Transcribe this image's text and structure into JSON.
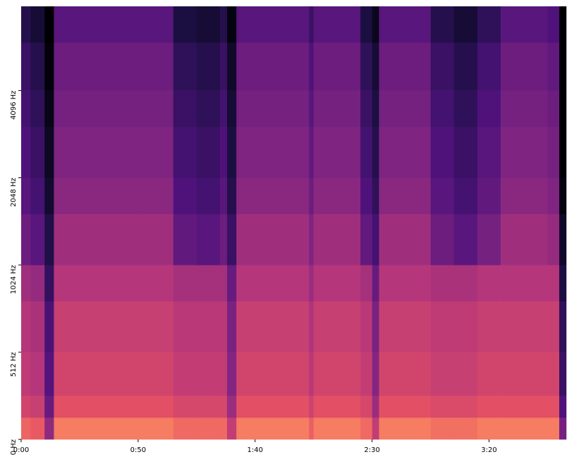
{
  "chart_data": {
    "type": "spectrogram",
    "x": [
      0,
      4,
      10,
      14,
      25,
      50,
      65,
      75,
      85,
      88,
      92,
      110,
      123,
      125,
      145,
      150,
      153,
      175,
      185,
      195,
      205,
      225,
      230,
      233
    ],
    "y": [
      0,
      128,
      256,
      512,
      768,
      1024,
      1536,
      2048,
      3072,
      4096,
      6000,
      8000
    ],
    "values": [
      [
        -26,
        -28,
        -47,
        -22,
        -22,
        -22,
        -25,
        -25,
        -25,
        -37,
        -22,
        -22,
        -27,
        -22,
        -25,
        -37,
        -22,
        -24,
        -24,
        -22,
        -22,
        -22,
        -52
      ],
      [
        -34,
        -36,
        -55,
        -30,
        -30,
        -30,
        -33,
        -33,
        -33,
        -45,
        -30,
        -30,
        -35,
        -30,
        -33,
        -45,
        -30,
        -32,
        -32,
        -30,
        -30,
        -30,
        -60
      ],
      [
        -38,
        -40,
        -59,
        -34,
        -34,
        -34,
        -37,
        -37,
        -37,
        -49,
        -34,
        -34,
        -39,
        -34,
        -37,
        -49,
        -34,
        -36,
        -36,
        -34,
        -34,
        -34,
        -64
      ],
      [
        -40,
        -42,
        -61,
        -36,
        -36,
        -36,
        -39,
        -39,
        -39,
        -51,
        -36,
        -36,
        -41,
        -36,
        -39,
        -51,
        -36,
        -38,
        -38,
        -36,
        -36,
        -36,
        -66
      ],
      [
        -44,
        -46,
        -65,
        -40,
        -40,
        -40,
        -43,
        -43,
        -43,
        -55,
        -40,
        -40,
        -45,
        -40,
        -43,
        -55,
        -40,
        -42,
        -42,
        -40,
        -40,
        -40,
        -70
      ],
      [
        -54,
        -58,
        -69,
        -44,
        -44,
        -44,
        -56,
        -58,
        -54,
        -64,
        -44,
        -44,
        -50,
        -44,
        -56,
        -62,
        -44,
        -54,
        -58,
        -52,
        -44,
        -46,
        -74
      ],
      [
        -58,
        -62,
        -73,
        -48,
        -48,
        -48,
        -60,
        -62,
        -58,
        -68,
        -48,
        -48,
        -54,
        -48,
        -60,
        -66,
        -48,
        -58,
        -62,
        -56,
        -48,
        -50,
        -78
      ],
      [
        -60,
        -64,
        -75,
        -50,
        -50,
        -50,
        -62,
        -64,
        -60,
        -70,
        -50,
        -50,
        -56,
        -50,
        -62,
        -68,
        -50,
        -60,
        -64,
        -58,
        -50,
        -52,
        -80
      ],
      [
        -62,
        -66,
        -77,
        -52,
        -52,
        -52,
        -64,
        -66,
        -62,
        -72,
        -52,
        -52,
        -58,
        -52,
        -64,
        -70,
        -52,
        -62,
        -66,
        -60,
        -52,
        -54,
        -80
      ],
      [
        -64,
        -68,
        -79,
        -54,
        -54,
        -54,
        -66,
        -68,
        -64,
        -74,
        -54,
        -54,
        -60,
        -54,
        -66,
        -72,
        -54,
        -64,
        -68,
        -62,
        -54,
        -56,
        -80
      ],
      [
        -68,
        -72,
        -80,
        -58,
        -58,
        -58,
        -70,
        -72,
        -68,
        -78,
        -58,
        -58,
        -64,
        -58,
        -70,
        -76,
        -58,
        -68,
        -72,
        -66,
        -58,
        -60,
        -80
      ]
    ],
    "clim": [
      -80,
      0
    ],
    "colormap": "magma",
    "xlim": [
      0,
      233
    ],
    "xticks": [
      {
        "value": 0,
        "label": "0:00"
      },
      {
        "value": 50,
        "label": "0:50"
      },
      {
        "value": 100,
        "label": "1:40"
      },
      {
        "value": 150,
        "label": "2:30"
      },
      {
        "value": 200,
        "label": "3:20"
      }
    ],
    "ylim": [
      0,
      8000
    ],
    "yscale": "symlog",
    "linthresh": 512,
    "yticks": [
      {
        "value": 0,
        "label": "0 Hz"
      },
      {
        "value": 512,
        "label": "512 Hz"
      },
      {
        "value": 1024,
        "label": "1024 Hz"
      },
      {
        "value": 2048,
        "label": "2048 Hz"
      },
      {
        "value": 4096,
        "label": "4096 Hz"
      }
    ]
  }
}
